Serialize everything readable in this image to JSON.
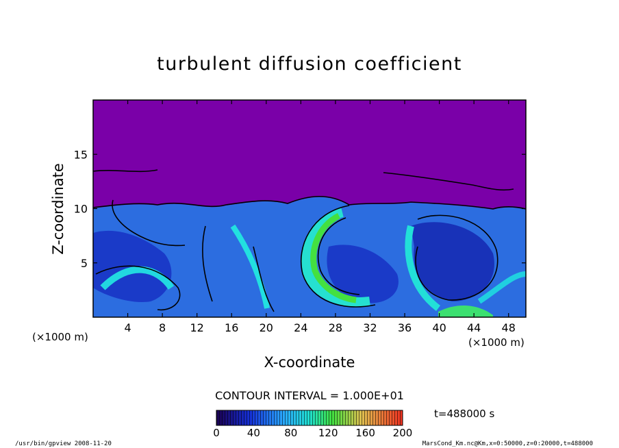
{
  "chart_data": {
    "type": "heatmap",
    "title": "turbulent diffusion coefficient",
    "xlabel": "X-coordinate",
    "ylabel": "Z-coordinate",
    "x_unit_left": "(×1000 m)",
    "x_unit_right": "(×1000 m)",
    "xlim": [
      0,
      50
    ],
    "ylim": [
      0,
      20
    ],
    "x_ticks": [
      4,
      8,
      12,
      16,
      20,
      24,
      28,
      32,
      36,
      40,
      44,
      48
    ],
    "y_ticks": [
      5,
      10,
      15
    ],
    "contour_interval_text": "CONTOUR INTERVAL = 1.000E+01",
    "time_label": "t=488000 s",
    "colorbar": {
      "min": 0,
      "max": 200,
      "ticks": [
        0,
        40,
        80,
        120,
        160,
        200
      ]
    },
    "colors": {
      "background_field": "#7a00a8",
      "low": "#1a1aa0",
      "mid": "#2f7fff",
      "cyan": "#22e0e0",
      "green": "#3ce040",
      "contour": "#000000"
    },
    "field_description": {
      "quiet_region_above_z": 10,
      "turbulent_layer_top_approx": 10
    },
    "footer_left": "/usr/bin/gpview   2008-11-20",
    "footer_right": "MarsCond_Km.nc@Km,x=0:50000,z=0:20000,t=488000"
  }
}
